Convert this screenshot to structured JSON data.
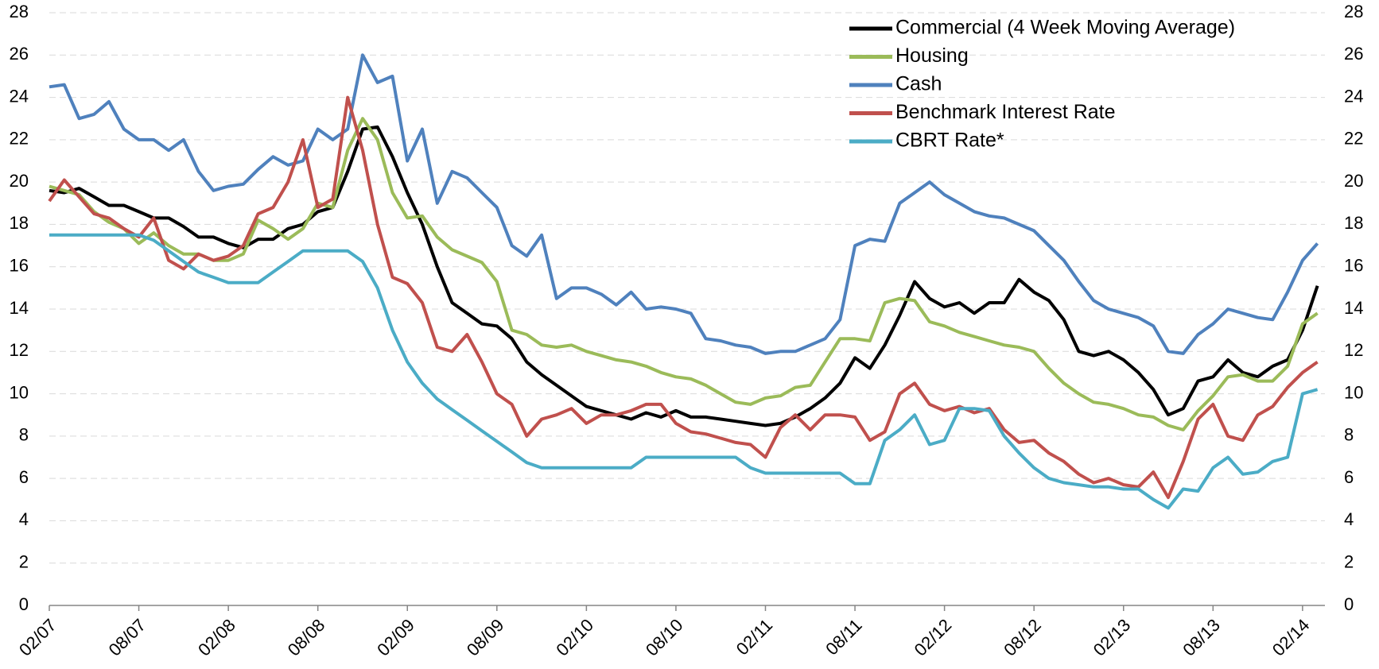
{
  "chart_data": {
    "type": "line",
    "x": [
      "02/07",
      "03/07",
      "04/07",
      "05/07",
      "06/07",
      "07/07",
      "08/07",
      "09/07",
      "10/07",
      "11/07",
      "12/07",
      "01/08",
      "02/08",
      "03/08",
      "04/08",
      "05/08",
      "06/08",
      "07/08",
      "08/08",
      "09/08",
      "10/08",
      "11/08",
      "12/08",
      "01/09",
      "02/09",
      "03/09",
      "04/09",
      "05/09",
      "06/09",
      "07/09",
      "08/09",
      "09/09",
      "10/09",
      "11/09",
      "12/09",
      "01/10",
      "02/10",
      "03/10",
      "04/10",
      "05/10",
      "06/10",
      "07/10",
      "08/10",
      "09/10",
      "10/10",
      "11/10",
      "12/10",
      "01/11",
      "02/11",
      "03/11",
      "04/11",
      "05/11",
      "06/11",
      "07/11",
      "08/11",
      "09/11",
      "10/11",
      "11/11",
      "12/11",
      "01/12",
      "02/12",
      "03/12",
      "04/12",
      "05/12",
      "06/12",
      "07/12",
      "08/12",
      "09/12",
      "10/12",
      "11/12",
      "12/12",
      "01/13",
      "02/13",
      "03/13",
      "04/13",
      "05/13",
      "06/13",
      "07/13",
      "08/13",
      "09/13",
      "10/13",
      "11/13",
      "12/13",
      "01/14",
      "02/14",
      "03/14"
    ],
    "xticks": [
      "02/07",
      "08/07",
      "02/08",
      "08/08",
      "02/09",
      "08/09",
      "02/10",
      "08/10",
      "02/11",
      "08/11",
      "02/12",
      "08/12",
      "02/13",
      "08/13",
      "02/14"
    ],
    "ylim": [
      0,
      28
    ],
    "yticks": [
      0,
      2,
      4,
      6,
      8,
      10,
      12,
      14,
      16,
      18,
      20,
      22,
      24,
      26,
      28
    ],
    "grid": true,
    "legend": "upper right",
    "series": [
      {
        "name": "Commercial (4 Week Moving Average)",
        "color": "#000000",
        "values": [
          19.6,
          19.5,
          19.7,
          19.3,
          18.9,
          18.9,
          18.6,
          18.3,
          18.3,
          17.9,
          17.4,
          17.4,
          17.1,
          16.9,
          17.3,
          17.3,
          17.8,
          18.0,
          18.6,
          18.8,
          20.5,
          22.5,
          22.6,
          21.2,
          19.5,
          18.0,
          16.0,
          14.3,
          13.8,
          13.3,
          13.2,
          12.6,
          11.5,
          10.9,
          10.4,
          9.9,
          9.4,
          9.2,
          9.0,
          8.8,
          9.1,
          8.9,
          9.2,
          8.9,
          8.9,
          8.8,
          8.7,
          8.6,
          8.5,
          8.6,
          8.9,
          9.3,
          9.8,
          10.5,
          11.7,
          11.2,
          12.3,
          13.7,
          15.3,
          14.5,
          14.1,
          14.3,
          13.8,
          14.3,
          14.3,
          15.4,
          14.8,
          14.4,
          13.5,
          12.0,
          11.8,
          12.0,
          11.6,
          11.0,
          10.2,
          9.0,
          9.3,
          10.6,
          10.8,
          11.6,
          11.0,
          10.8,
          11.3,
          11.6,
          13.0,
          15.1
        ]
      },
      {
        "name": "Housing",
        "color": "#9bbb59",
        "values": [
          19.8,
          19.6,
          19.4,
          18.6,
          18.1,
          17.8,
          17.1,
          17.6,
          17.0,
          16.6,
          16.6,
          16.3,
          16.3,
          16.6,
          18.2,
          17.8,
          17.3,
          17.8,
          19.0,
          18.8,
          21.5,
          23.0,
          22.0,
          19.5,
          18.3,
          18.4,
          17.4,
          16.8,
          16.5,
          16.2,
          15.3,
          13.0,
          12.8,
          12.3,
          12.2,
          12.3,
          12.0,
          11.8,
          11.6,
          11.5,
          11.3,
          11.0,
          10.8,
          10.7,
          10.4,
          10.0,
          9.6,
          9.5,
          9.8,
          9.9,
          10.3,
          10.4,
          11.5,
          12.6,
          12.6,
          12.5,
          14.3,
          14.5,
          14.4,
          13.4,
          13.2,
          12.9,
          12.7,
          12.5,
          12.3,
          12.2,
          12.0,
          11.2,
          10.5,
          10.0,
          9.6,
          9.5,
          9.3,
          9.0,
          8.9,
          8.5,
          8.3,
          9.2,
          9.9,
          10.8,
          10.9,
          10.6,
          10.6,
          11.3,
          13.3,
          13.8
        ]
      },
      {
        "name": "Cash",
        "color": "#4f81bd",
        "values": [
          24.5,
          24.6,
          23.0,
          23.2,
          23.8,
          22.5,
          22.0,
          22.0,
          21.5,
          22.0,
          20.5,
          19.6,
          19.8,
          19.9,
          20.6,
          21.2,
          20.8,
          21.0,
          22.5,
          22.0,
          22.5,
          26.0,
          24.7,
          25.0,
          21.0,
          22.5,
          19.0,
          20.5,
          20.2,
          19.5,
          18.8,
          17.0,
          16.5,
          17.5,
          14.5,
          15.0,
          15.0,
          14.7,
          14.2,
          14.8,
          14.0,
          14.1,
          14.0,
          13.8,
          12.6,
          12.5,
          12.3,
          12.2,
          11.9,
          12.0,
          12.0,
          12.3,
          12.6,
          13.5,
          17.0,
          17.3,
          17.2,
          19.0,
          19.5,
          20.0,
          19.4,
          19.0,
          18.6,
          18.4,
          18.3,
          18.0,
          17.7,
          17.0,
          16.3,
          15.3,
          14.4,
          14.0,
          13.8,
          13.6,
          13.2,
          12.0,
          11.9,
          12.8,
          13.3,
          14.0,
          13.8,
          13.6,
          13.5,
          14.8,
          16.3,
          17.1
        ]
      },
      {
        "name": "Benchmark Interest Rate",
        "color": "#c0504d",
        "values": [
          19.1,
          20.1,
          19.3,
          18.5,
          18.3,
          17.8,
          17.4,
          18.3,
          16.3,
          15.9,
          16.6,
          16.3,
          16.5,
          17.0,
          18.5,
          18.8,
          20.0,
          22.0,
          18.8,
          19.2,
          24.0,
          21.5,
          18.0,
          15.5,
          15.2,
          14.3,
          12.2,
          12.0,
          12.8,
          11.5,
          10.0,
          9.5,
          8.0,
          8.8,
          9.0,
          9.3,
          8.6,
          9.0,
          9.0,
          9.2,
          9.5,
          9.5,
          8.6,
          8.2,
          8.1,
          7.9,
          7.7,
          7.6,
          7.0,
          8.4,
          9.0,
          8.3,
          9.0,
          9.0,
          8.9,
          7.8,
          8.2,
          10.0,
          10.5,
          9.5,
          9.2,
          9.4,
          9.1,
          9.3,
          8.3,
          7.7,
          7.8,
          7.2,
          6.8,
          6.2,
          5.8,
          6.0,
          5.7,
          5.6,
          6.3,
          5.1,
          6.8,
          8.8,
          9.5,
          8.0,
          7.8,
          9.0,
          9.4,
          10.3,
          11.0,
          11.5
        ]
      },
      {
        "name": "CBRT Rate*",
        "color": "#4bacc6",
        "values": [
          17.5,
          17.5,
          17.5,
          17.5,
          17.5,
          17.5,
          17.5,
          17.25,
          16.75,
          16.25,
          15.75,
          15.5,
          15.25,
          15.25,
          15.25,
          15.75,
          16.25,
          16.75,
          16.75,
          16.75,
          16.75,
          16.25,
          15.0,
          13.0,
          11.5,
          10.5,
          9.75,
          9.25,
          8.75,
          8.25,
          7.75,
          7.25,
          6.75,
          6.5,
          6.5,
          6.5,
          6.5,
          6.5,
          6.5,
          6.5,
          7.0,
          7.0,
          7.0,
          7.0,
          7.0,
          7.0,
          7.0,
          6.5,
          6.25,
          6.25,
          6.25,
          6.25,
          6.25,
          6.25,
          5.75,
          5.75,
          7.8,
          8.3,
          9.0,
          7.6,
          7.8,
          9.3,
          9.3,
          9.2,
          8.0,
          7.2,
          6.5,
          6.0,
          5.8,
          5.7,
          5.6,
          5.6,
          5.5,
          5.5,
          5.0,
          4.6,
          5.5,
          5.4,
          6.5,
          7.0,
          6.2,
          6.3,
          6.8,
          7.0,
          10.0,
          10.2
        ]
      }
    ]
  }
}
